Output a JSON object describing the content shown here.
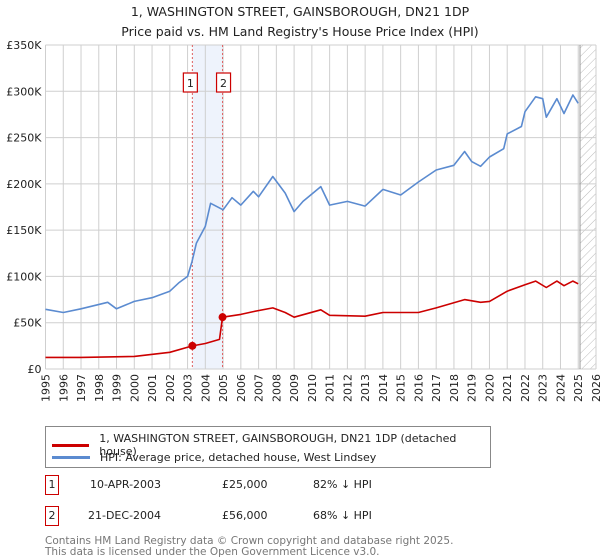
{
  "title": "1, WASHINGTON STREET, GAINSBOROUGH, DN21 1DP",
  "subtitle": "Price paid vs. HM Land Registry's House Price Index (HPI)",
  "chart_data": {
    "type": "line",
    "ylim": [
      0,
      350000
    ],
    "xlim": [
      1995,
      2026
    ],
    "y_ticks": [
      0,
      50000,
      100000,
      150000,
      200000,
      250000,
      300000,
      350000
    ],
    "y_tick_labels": [
      "£0",
      "£50K",
      "£100K",
      "£150K",
      "£200K",
      "£250K",
      "£300K",
      "£350K"
    ],
    "x_ticks": [
      "1995",
      "1996",
      "1997",
      "1998",
      "1999",
      "2000",
      "2001",
      "2002",
      "2003",
      "2004",
      "2005",
      "2006",
      "2007",
      "2008",
      "2009",
      "2010",
      "2011",
      "2012",
      "2013",
      "2014",
      "2015",
      "2016",
      "2017",
      "2018",
      "2019",
      "2020",
      "2021",
      "2022",
      "2023",
      "2024",
      "2025",
      "2026"
    ],
    "grid": true,
    "forecast_hatch_from": 2025.1,
    "highlight_span": [
      2003.27,
      2004.97
    ],
    "series": [
      {
        "name": "1, WASHINGTON STREET, GAINSBOROUGH, DN21 1DP (detached house)",
        "color": "#cc0000",
        "x": [
          1995,
          1997,
          2000,
          2002,
          2003.27,
          2004,
          2004.8,
          2004.97,
          2006,
          2006.7,
          2007.8,
          2008.5,
          2009,
          2010.5,
          2011,
          2013,
          2014,
          2016,
          2017,
          2018.6,
          2019.5,
          2020,
          2021,
          2022,
          2022.6,
          2023.2,
          2023.8,
          2024.2,
          2024.7,
          2025
        ],
        "values": [
          12500,
          12500,
          13600,
          18000,
          25000,
          27600,
          32000,
          56000,
          59000,
          62000,
          66000,
          61000,
          56000,
          64000,
          58000,
          57000,
          61000,
          61000,
          66000,
          75000,
          72000,
          73000,
          84000,
          91000,
          95000,
          88000,
          95000,
          90000,
          95000,
          92000
        ]
      },
      {
        "name": "HPI: Average price, detached house, West Lindsey",
        "color": "#5b8bd0",
        "x": [
          1995,
          1996,
          1997,
          1998.5,
          1999,
          2000,
          2001,
          2002,
          2002.5,
          2003,
          2003.25,
          2003.5,
          2004,
          2004.3,
          2005,
          2005.5,
          2006,
          2006.7,
          2007,
          2007.8,
          2008.5,
          2009,
          2009.5,
          2010.5,
          2011,
          2012,
          2013,
          2014,
          2015,
          2016,
          2017,
          2018,
          2018.6,
          2019,
          2019.5,
          2020,
          2020.8,
          2021,
          2021.8,
          2022,
          2022.6,
          2023,
          2023.2,
          2023.8,
          2024.2,
          2024.7,
          2025
        ],
        "values": [
          64500,
          61000,
          65000,
          72000,
          65000,
          73000,
          77000,
          84000,
          93000,
          100000,
          116000,
          136000,
          154000,
          179000,
          172000,
          185000,
          177000,
          192000,
          186000,
          208000,
          190000,
          170000,
          181000,
          197000,
          177000,
          181000,
          176000,
          194000,
          188000,
          202000,
          215000,
          220000,
          235000,
          224000,
          219000,
          229000,
          238000,
          254000,
          262000,
          278000,
          294000,
          292000,
          272000,
          292000,
          276000,
          296000,
          287000
        ]
      }
    ],
    "markers": [
      {
        "label": "1",
        "x": 2003.27,
        "value": 25000
      },
      {
        "label": "2",
        "x": 2004.97,
        "value": 56000
      }
    ]
  },
  "legend": {
    "red": "1, WASHINGTON STREET, GAINSBOROUGH, DN21 1DP (detached house)",
    "blue": "HPI: Average price, detached house, West Lindsey"
  },
  "transactions": [
    {
      "num": "1",
      "date": "10-APR-2003",
      "price": "£25,000",
      "hpi": "82% ↓ HPI"
    },
    {
      "num": "2",
      "date": "21-DEC-2004",
      "price": "£56,000",
      "hpi": "68% ↓ HPI"
    }
  ],
  "footer": {
    "line1": "Contains HM Land Registry data © Crown copyright and database right 2025.",
    "line2": "This data is licensed under the Open Government Licence v3.0."
  }
}
